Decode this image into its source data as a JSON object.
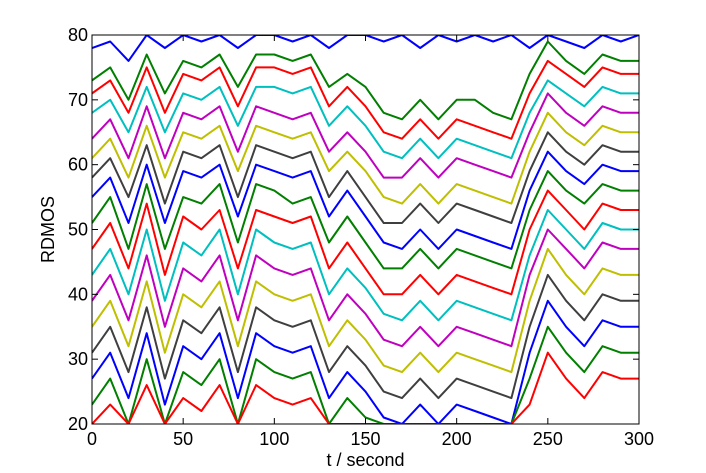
{
  "chart_data": {
    "type": "line",
    "title": "",
    "xlabel": "t / second",
    "ylabel": "RDMOS",
    "xlim": [
      0,
      300
    ],
    "ylim": [
      20,
      80
    ],
    "xticks": [
      0,
      50,
      100,
      150,
      200,
      250,
      300
    ],
    "yticks": [
      20,
      30,
      40,
      50,
      60,
      70,
      80
    ],
    "grid": false,
    "legend": "none",
    "color_cycle": [
      "#0000ff",
      "#007f00",
      "#ff0000",
      "#00bfbf",
      "#bf00bf",
      "#bfbf00",
      "#3f3f3f"
    ],
    "x": [
      0,
      10,
      20,
      30,
      40,
      50,
      60,
      70,
      80,
      90,
      100,
      110,
      120,
      130,
      140,
      150,
      160,
      170,
      180,
      190,
      200,
      210,
      220,
      230,
      240,
      250,
      260,
      270,
      280,
      290,
      300
    ],
    "series": [
      {
        "values": [
          78,
          79,
          76,
          80,
          78,
          80,
          79,
          80,
          78,
          80,
          80,
          79,
          80,
          78,
          80,
          80,
          79,
          80,
          78,
          80,
          79,
          80,
          79,
          80,
          78,
          80,
          79,
          78,
          80,
          79,
          80
        ]
      },
      {
        "values": [
          73,
          75,
          70,
          77,
          71,
          76,
          75,
          77,
          72,
          77,
          77,
          76,
          77,
          72,
          74,
          72,
          68,
          67,
          70,
          67,
          70,
          70,
          68,
          67,
          74,
          79,
          76,
          74,
          77,
          76,
          76
        ]
      },
      {
        "values": [
          71,
          73,
          68,
          75,
          68,
          74,
          73,
          75,
          69,
          75,
          75,
          74,
          75,
          69,
          72,
          69,
          65,
          64,
          67,
          64,
          67,
          66,
          65,
          64,
          71,
          76,
          74,
          72,
          75,
          74,
          74
        ]
      },
      {
        "values": [
          68,
          70,
          65,
          72,
          65,
          71,
          70,
          72,
          66,
          72,
          72,
          71,
          72,
          66,
          69,
          66,
          62,
          61,
          64,
          61,
          64,
          63,
          62,
          61,
          68,
          73,
          71,
          69,
          72,
          71,
          71
        ]
      },
      {
        "values": [
          64,
          67,
          61,
          69,
          61,
          68,
          67,
          69,
          62,
          69,
          68,
          67,
          68,
          62,
          65,
          62,
          58,
          58,
          61,
          58,
          61,
          60,
          59,
          58,
          65,
          71,
          68,
          66,
          69,
          68,
          68
        ]
      },
      {
        "values": [
          61,
          64,
          58,
          66,
          58,
          65,
          64,
          66,
          59,
          66,
          65,
          64,
          65,
          59,
          62,
          59,
          55,
          54,
          57,
          54,
          57,
          56,
          55,
          54,
          62,
          68,
          65,
          63,
          66,
          65,
          65
        ]
      },
      {
        "values": [
          58,
          61,
          55,
          63,
          54,
          62,
          61,
          63,
          55,
          63,
          62,
          61,
          62,
          55,
          59,
          55,
          51,
          51,
          54,
          51,
          54,
          53,
          52,
          51,
          59,
          65,
          62,
          60,
          63,
          62,
          62
        ]
      },
      {
        "values": [
          55,
          58,
          51,
          60,
          51,
          59,
          58,
          60,
          52,
          60,
          59,
          58,
          59,
          52,
          56,
          52,
          48,
          47,
          50,
          47,
          50,
          49,
          48,
          47,
          56,
          62,
          59,
          57,
          60,
          59,
          59
        ]
      },
      {
        "values": [
          51,
          55,
          47,
          57,
          47,
          55,
          54,
          57,
          48,
          57,
          56,
          54,
          55,
          48,
          52,
          48,
          44,
          44,
          47,
          44,
          47,
          46,
          45,
          44,
          53,
          59,
          56,
          54,
          57,
          56,
          56
        ]
      },
      {
        "values": [
          47,
          51,
          44,
          54,
          43,
          52,
          50,
          53,
          44,
          53,
          52,
          51,
          52,
          44,
          48,
          44,
          40,
          40,
          43,
          40,
          43,
          42,
          41,
          40,
          50,
          56,
          53,
          50,
          54,
          53,
          53
        ]
      },
      {
        "values": [
          43,
          47,
          40,
          50,
          39,
          48,
          46,
          50,
          40,
          50,
          48,
          47,
          48,
          40,
          44,
          41,
          37,
          36,
          39,
          36,
          39,
          38,
          37,
          36,
          46,
          53,
          50,
          47,
          51,
          50,
          50
        ]
      },
      {
        "values": [
          39,
          43,
          36,
          46,
          35,
          44,
          42,
          46,
          36,
          46,
          44,
          43,
          44,
          36,
          40,
          37,
          33,
          32,
          35,
          32,
          35,
          34,
          33,
          32,
          43,
          50,
          47,
          44,
          48,
          47,
          47
        ]
      },
      {
        "values": [
          35,
          39,
          32,
          42,
          31,
          40,
          38,
          42,
          32,
          42,
          40,
          39,
          40,
          32,
          36,
          33,
          29,
          28,
          31,
          28,
          31,
          30,
          29,
          28,
          39,
          47,
          43,
          40,
          44,
          43,
          43
        ]
      },
      {
        "values": [
          31,
          35,
          28,
          38,
          27,
          36,
          34,
          38,
          28,
          38,
          36,
          35,
          36,
          28,
          32,
          29,
          25,
          24,
          27,
          24,
          27,
          26,
          25,
          24,
          35,
          43,
          39,
          36,
          40,
          39,
          39
        ]
      },
      {
        "values": [
          27,
          31,
          24,
          34,
          23,
          32,
          30,
          34,
          24,
          34,
          32,
          31,
          32,
          24,
          28,
          25,
          21,
          20,
          23,
          20,
          23,
          22,
          21,
          20,
          31,
          39,
          35,
          32,
          36,
          35,
          35
        ]
      },
      {
        "values": [
          23,
          27,
          20,
          30,
          20,
          28,
          26,
          30,
          20,
          30,
          28,
          27,
          28,
          20,
          24,
          21,
          20,
          20,
          20,
          20,
          20,
          20,
          20,
          20,
          27,
          35,
          31,
          28,
          32,
          31,
          31
        ]
      },
      {
        "values": [
          20,
          23,
          20,
          26,
          20,
          24,
          22,
          26,
          20,
          26,
          24,
          23,
          24,
          20,
          20,
          20,
          20,
          20,
          20,
          20,
          20,
          20,
          20,
          20,
          23,
          31,
          27,
          24,
          28,
          27,
          27
        ]
      }
    ]
  }
}
